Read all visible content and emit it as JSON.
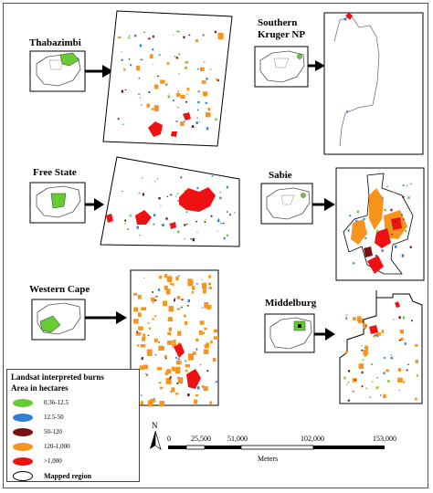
{
  "regions": {
    "thabazimbi": "Thabazimbi",
    "southern_kruger_1": "Southern",
    "southern_kruger_2": "Kruger NP",
    "free_state": "Free State",
    "sabie": "Sabie",
    "western_cape": "Western Cape",
    "middelburg": "Middelburg"
  },
  "legend": {
    "title": "Landsat interpreted burns",
    "subtitle": "Area in hectares",
    "items": [
      {
        "label": "0.36-12.5",
        "color": "#66cc33"
      },
      {
        "label": "12.5-50",
        "color": "#2f7fd6"
      },
      {
        "label": "50-120",
        "color": "#7a1010"
      },
      {
        "label": "120-1,000",
        "color": "#f7941d"
      },
      {
        "label": ">1,000",
        "color": "#ee1111"
      }
    ],
    "mapped_region": "Mapped region"
  },
  "north_arrow": "N",
  "scale_bar": {
    "ticks": [
      "0",
      "25,500",
      "51,000",
      "102,000",
      "153,000"
    ],
    "unit": "Meters"
  },
  "colors": {
    "inset_highlight": "#66cc33",
    "arrow": "#000000",
    "burn_small": "#66cc33",
    "burn_medium": "#2f7fd6",
    "burn_dark": "#7a1010",
    "burn_large": "#f7941d",
    "burn_very_large": "#ee1111"
  }
}
